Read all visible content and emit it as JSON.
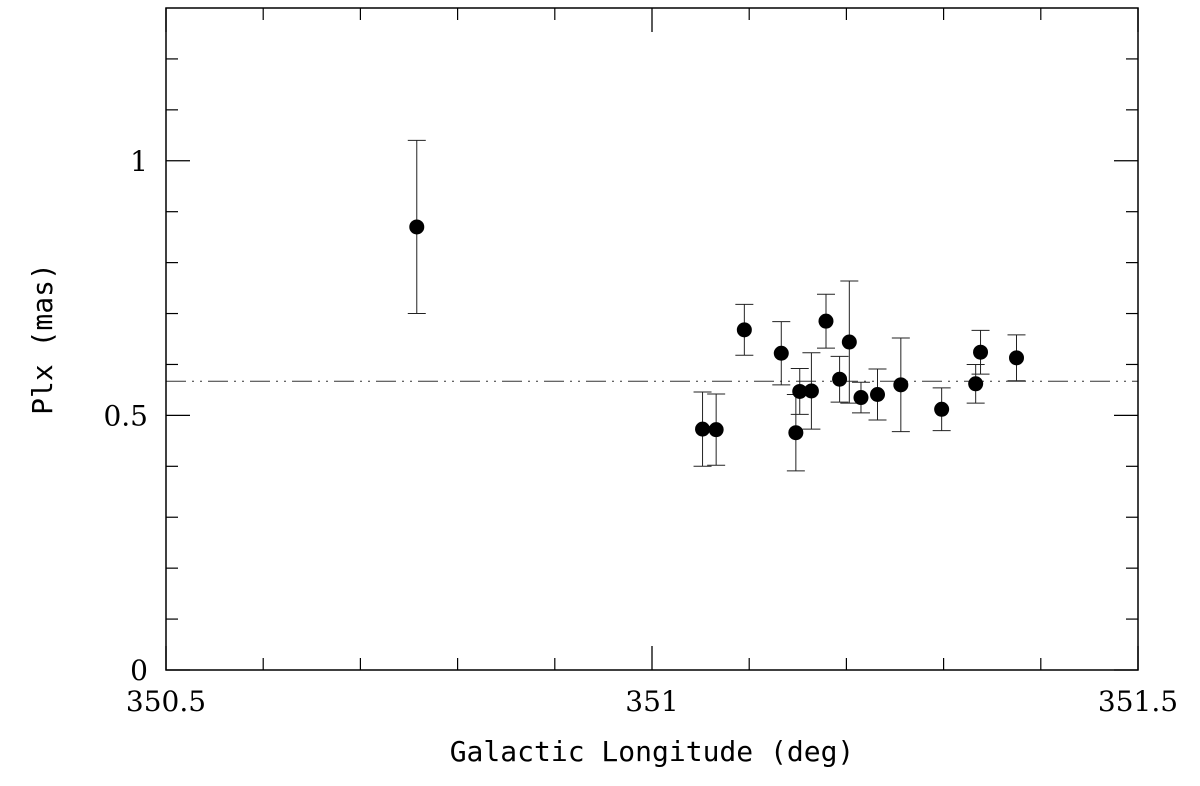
{
  "chart_data": {
    "type": "scatter",
    "title": "",
    "xlabel": "Galactic Longitude (deg)",
    "ylabel": "Plx (mas)",
    "xlim": [
      350.5,
      351.5
    ],
    "ylim": [
      0,
      1.3
    ],
    "x_ticks": [
      {
        "value": 350.5,
        "label": "350.5"
      },
      {
        "value": 351,
        "label": "351"
      },
      {
        "value": 351.5,
        "label": "351.5"
      }
    ],
    "y_ticks": [
      {
        "value": 0,
        "label": "0"
      },
      {
        "value": 0.5,
        "label": "0.5"
      },
      {
        "value": 1,
        "label": "1"
      }
    ],
    "x_minor_step": 0.1,
    "y_minor_step": 0.1,
    "grid": false,
    "reference_line": {
      "y": 0.567,
      "style": "dash-dot-dot"
    },
    "points": [
      {
        "x": 350.758,
        "y": 0.87,
        "err": 0.17
      },
      {
        "x": 351.052,
        "y": 0.473,
        "err": 0.073
      },
      {
        "x": 351.066,
        "y": 0.472,
        "err": 0.07
      },
      {
        "x": 351.095,
        "y": 0.668,
        "err": 0.05
      },
      {
        "x": 351.133,
        "y": 0.622,
        "err": 0.062
      },
      {
        "x": 351.148,
        "y": 0.466,
        "err": 0.075
      },
      {
        "x": 351.152,
        "y": 0.547,
        "err": 0.045
      },
      {
        "x": 351.164,
        "y": 0.548,
        "err": 0.075
      },
      {
        "x": 351.179,
        "y": 0.685,
        "err": 0.053
      },
      {
        "x": 351.193,
        "y": 0.571,
        "err": 0.045
      },
      {
        "x": 351.203,
        "y": 0.644,
        "err": 0.12
      },
      {
        "x": 351.215,
        "y": 0.535,
        "err": 0.03
      },
      {
        "x": 351.232,
        "y": 0.541,
        "err": 0.05
      },
      {
        "x": 351.256,
        "y": 0.56,
        "err": 0.092
      },
      {
        "x": 351.298,
        "y": 0.512,
        "err": 0.042
      },
      {
        "x": 351.333,
        "y": 0.562,
        "err": 0.038
      },
      {
        "x": 351.338,
        "y": 0.624,
        "err": 0.043
      },
      {
        "x": 351.375,
        "y": 0.613,
        "err": 0.045
      }
    ]
  }
}
